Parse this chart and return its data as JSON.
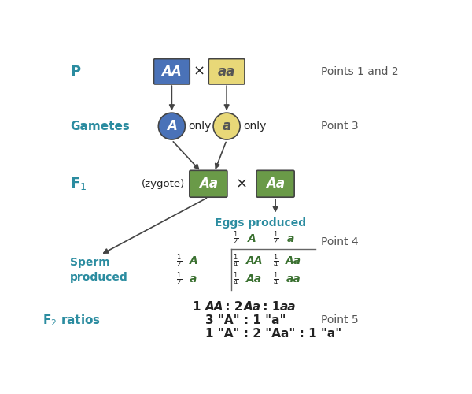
{
  "blue_box_color": "#4a72b8",
  "yellow_box_color": "#e8d878",
  "green_box_color": "#6a9a48",
  "blue_circle_color": "#4a72b8",
  "yellow_circle_color": "#e8d878",
  "cyan_label_color": "#2b8ca0",
  "green_text_color": "#3a7030",
  "dark_text_color": "#222222",
  "point_label_color": "#555555",
  "label_P": "P",
  "label_Gametes": "Gametes",
  "label_F1": "F$_1$",
  "label_F2_ratios": "F$_2$ ratios",
  "label_Sperm": "Sperm\nproduced",
  "label_Eggs": "Eggs produced",
  "point1": "Points 1 and 2",
  "point3": "Point 3",
  "point4": "Point 4",
  "point5": "Point 5",
  "ratio1": "1 AA : 2 Aa : 1 aa",
  "ratio2": "3 \"A\" : 1 \"a\"",
  "ratio3": "1 \"A\" : 2 \"Aa\" : 1 \"a\""
}
